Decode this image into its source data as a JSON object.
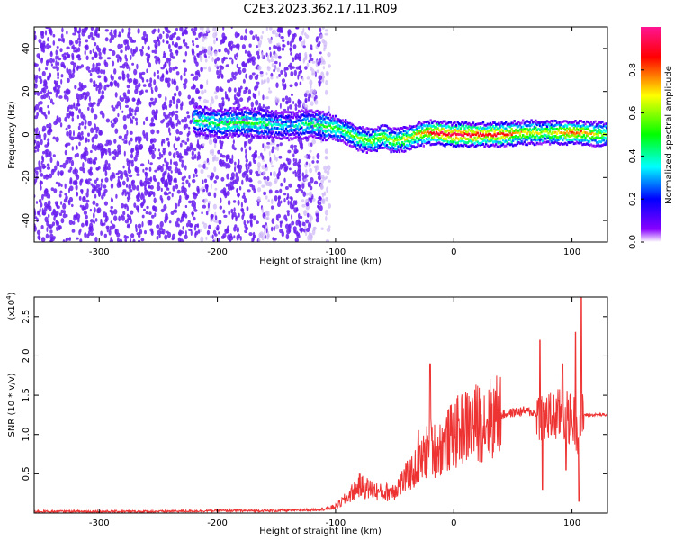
{
  "title": "C2E3.2023.362.17.11.R09",
  "colors": {
    "snr_line": "#ee3333",
    "spec_scatter": "#6a1ef0",
    "spec_scatter_light": "#cdb6f7"
  },
  "chart_data": [
    {
      "type": "heatmap",
      "xlabel": "Height of straight line (km)",
      "ylabel": "Frequency (Hz)",
      "xlim": [
        -355,
        130
      ],
      "ylim": [
        -50,
        50
      ],
      "xticks": [
        -300,
        -200,
        -100,
        0,
        100
      ],
      "yticks": [
        -40,
        -20,
        0,
        20,
        40
      ],
      "xtick_labels": [
        "-300",
        "-200",
        "-100",
        "0",
        "100"
      ],
      "ytick_labels": [
        "-40",
        "-20",
        "0",
        "20",
        "40"
      ],
      "grid": false,
      "noise_region_x": [
        -355,
        -105
      ],
      "signal_trace": {
        "x": [
          -220,
          -200,
          -180,
          -160,
          -140,
          -120,
          -110,
          -100,
          -90,
          -80,
          -70,
          -60,
          -50,
          -40,
          -30,
          -20,
          0,
          20,
          40,
          60,
          80,
          100,
          130
        ],
        "frequency_hz": [
          7,
          5,
          6,
          5,
          4,
          5,
          4,
          3,
          1,
          -2,
          -3,
          -1,
          -3,
          -2,
          0,
          1,
          0,
          0,
          0,
          1,
          1,
          1,
          0
        ],
        "peak_amplitude": [
          0.45,
          0.45,
          0.5,
          0.45,
          0.3,
          0.45,
          0.5,
          0.5,
          0.5,
          0.55,
          0.55,
          0.6,
          0.6,
          0.65,
          0.7,
          0.85,
          0.95,
          0.9,
          0.85,
          0.7,
          0.6,
          0.85,
          0.55
        ]
      },
      "colorbar": {
        "label": "Normalized spectral amplitude",
        "range": [
          0.0,
          1.0
        ],
        "ticks": [
          0.0,
          0.2,
          0.4,
          0.6,
          0.8
        ],
        "tick_labels": [
          "0.0",
          "0.2",
          "0.4",
          "0.6",
          "0.8"
        ],
        "colors": [
          "#ffffff",
          "#8800ff",
          "#0000ff",
          "#00ffff",
          "#00ff00",
          "#ffff00",
          "#ff0000",
          "#ff1493"
        ]
      }
    },
    {
      "type": "line",
      "xlabel": "Height of straight line (km)",
      "ylabel": "SNR (10 * v/v)",
      "y_multiplier_label": "(x10",
      "y_multiplier_exp": "4",
      "xlim": [
        -355,
        130
      ],
      "ylim": [
        0,
        2.75
      ],
      "xticks": [
        -300,
        -200,
        -100,
        0,
        100
      ],
      "yticks": [
        0.5,
        1.0,
        1.5,
        2.0,
        2.5
      ],
      "xtick_labels": [
        "-300",
        "-200",
        "-100",
        "0",
        "100"
      ],
      "ytick_labels": [
        "0.5",
        "1.0",
        "1.5",
        "2.0",
        "2.5"
      ],
      "grid": false,
      "series": [
        {
          "x": [
            -355,
            -300,
            -250,
            -200,
            -150,
            -120,
            -110,
            -100,
            -90,
            -80,
            -70,
            -60,
            -50,
            -40,
            -30,
            -20,
            -15,
            -10,
            0,
            10,
            20,
            30,
            40,
            50,
            60,
            70,
            80,
            90,
            100,
            105,
            110,
            120,
            130
          ],
          "values": [
            0.02,
            0.02,
            0.02,
            0.03,
            0.03,
            0.04,
            0.05,
            0.08,
            0.2,
            0.35,
            0.3,
            0.25,
            0.3,
            0.45,
            0.6,
            0.85,
            0.8,
            0.85,
            1.0,
            1.1,
            1.15,
            1.2,
            1.25,
            1.28,
            1.3,
            1.27,
            1.2,
            1.25,
            1.2,
            1.1,
            1.25,
            1.25,
            1.25
          ],
          "spikes": [
            {
              "x": -20,
              "value": 1.9
            },
            {
              "x": -30,
              "value": 1.05
            },
            {
              "x": 73,
              "value": 2.2
            },
            {
              "x": 75,
              "value": 0.3
            },
            {
              "x": 92,
              "value": 1.9
            },
            {
              "x": 95,
              "value": 0.55
            },
            {
              "x": 103,
              "value": 2.3
            },
            {
              "x": 106,
              "value": 0.15
            },
            {
              "x": 108,
              "value": 2.75
            }
          ]
        }
      ]
    }
  ]
}
